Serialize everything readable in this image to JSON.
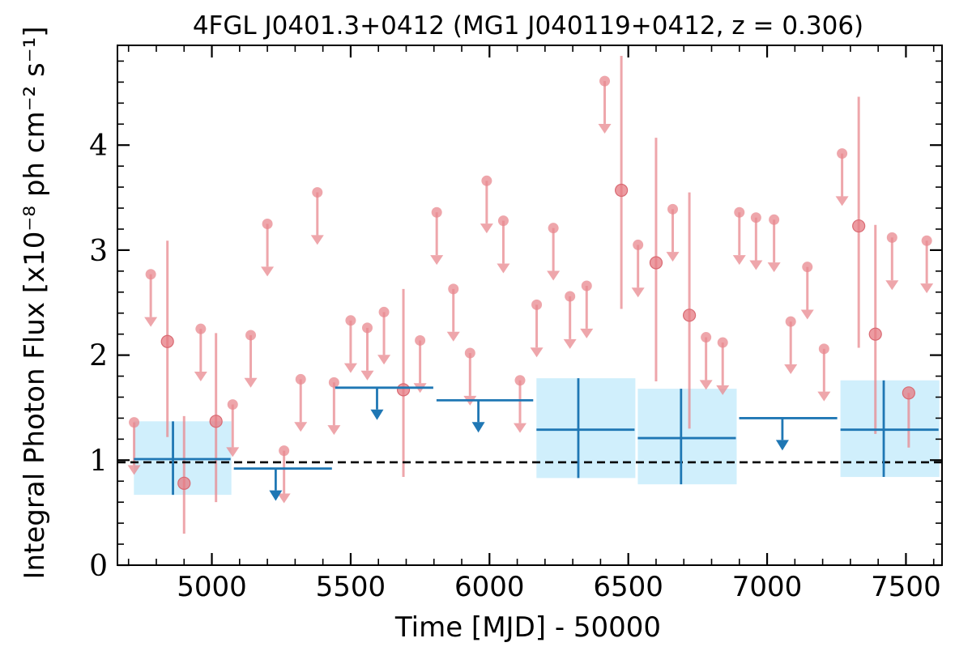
{
  "chart_data": {
    "type": "scatter",
    "title": "4FGL J0401.3+0412 (MG1 J040119+0412, z = 0.306)",
    "xlabel": "Time [MJD] - 50000",
    "ylabel": "Integral Photon Flux [x10⁻⁸ ph cm⁻² s⁻¹]",
    "xlim": [
      4660,
      7630
    ],
    "ylim": [
      0,
      4.95
    ],
    "xticks": [
      5000,
      5500,
      6000,
      6500,
      7000,
      7500
    ],
    "xtick_labels": [
      "5000",
      "5500",
      "6000",
      "6500",
      "7000",
      "7500"
    ],
    "yticks": [
      0,
      1,
      2,
      3,
      4
    ],
    "ytick_labels": [
      "0",
      "1",
      "2",
      "3",
      "4"
    ],
    "grid": false,
    "reference_line": {
      "y": 0.98,
      "style": "dashed",
      "color": "#000000"
    },
    "colors": {
      "short_bins": "#e8888f",
      "long_bins": "#1f77b4",
      "long_band": "#cdeefc"
    },
    "short_bins_upper_limits": [
      {
        "x": 4720,
        "y": 1.36
      },
      {
        "x": 4780,
        "y": 2.77
      },
      {
        "x": 4960,
        "y": 2.25
      },
      {
        "x": 5075,
        "y": 1.53
      },
      {
        "x": 5140,
        "y": 2.19
      },
      {
        "x": 5200,
        "y": 3.25
      },
      {
        "x": 5260,
        "y": 1.09
      },
      {
        "x": 5320,
        "y": 1.77
      },
      {
        "x": 5380,
        "y": 3.55
      },
      {
        "x": 5440,
        "y": 1.74
      },
      {
        "x": 5500,
        "y": 2.33
      },
      {
        "x": 5560,
        "y": 2.26
      },
      {
        "x": 5620,
        "y": 2.41
      },
      {
        "x": 5750,
        "y": 2.14
      },
      {
        "x": 5810,
        "y": 3.36
      },
      {
        "x": 5870,
        "y": 2.63
      },
      {
        "x": 5930,
        "y": 2.02
      },
      {
        "x": 5990,
        "y": 3.66
      },
      {
        "x": 6050,
        "y": 3.28
      },
      {
        "x": 6110,
        "y": 1.76
      },
      {
        "x": 6170,
        "y": 2.48
      },
      {
        "x": 6230,
        "y": 3.21
      },
      {
        "x": 6290,
        "y": 2.56
      },
      {
        "x": 6350,
        "y": 2.66
      },
      {
        "x": 6415,
        "y": 4.61
      },
      {
        "x": 6535,
        "y": 3.05
      },
      {
        "x": 6660,
        "y": 3.39
      },
      {
        "x": 6780,
        "y": 2.17
      },
      {
        "x": 6840,
        "y": 2.12
      },
      {
        "x": 6900,
        "y": 3.36
      },
      {
        "x": 6960,
        "y": 3.31
      },
      {
        "x": 7025,
        "y": 3.29
      },
      {
        "x": 7085,
        "y": 2.32
      },
      {
        "x": 7145,
        "y": 2.84
      },
      {
        "x": 7205,
        "y": 2.06
      },
      {
        "x": 7270,
        "y": 3.92
      },
      {
        "x": 7450,
        "y": 3.12
      },
      {
        "x": 7575,
        "y": 3.09
      }
    ],
    "short_bins_detections": [
      {
        "x": 4840,
        "y": 2.13,
        "ylow": 1.22,
        "yhigh": 3.09
      },
      {
        "x": 4900,
        "y": 0.78,
        "ylow": 0.3,
        "yhigh": 1.42
      },
      {
        "x": 5015,
        "y": 1.37,
        "ylow": 0.6,
        "yhigh": 2.21
      },
      {
        "x": 5690,
        "y": 1.67,
        "ylow": 0.84,
        "yhigh": 2.63
      },
      {
        "x": 6475,
        "y": 3.57,
        "ylow": 2.44,
        "yhigh": 4.85
      },
      {
        "x": 6600,
        "y": 2.88,
        "ylow": 1.75,
        "yhigh": 4.07
      },
      {
        "x": 6720,
        "y": 2.38,
        "ylow": 1.3,
        "yhigh": 3.55
      },
      {
        "x": 7330,
        "y": 3.23,
        "ylow": 2.07,
        "yhigh": 4.46
      },
      {
        "x": 7390,
        "y": 2.2,
        "ylow": 1.25,
        "yhigh": 3.24
      },
      {
        "x": 7510,
        "y": 1.64,
        "ylow": 1.12,
        "yhigh": 1.64
      }
    ],
    "long_bins_detections": [
      {
        "x": 4860,
        "xlow": 4690,
        "xhigh": 5050,
        "y": 1.01,
        "ylow": 0.67,
        "yhigh": 1.37
      },
      {
        "x": 6320,
        "xlow": 6140,
        "xhigh": 6505,
        "y": 1.29,
        "ylow": 0.83,
        "yhigh": 1.78
      },
      {
        "x": 6690,
        "xlow": 6505,
        "xhigh": 6870,
        "y": 1.21,
        "ylow": 0.77,
        "yhigh": 1.68
      },
      {
        "x": 7420,
        "xlow": 7235,
        "xhigh": 7600,
        "y": 1.29,
        "ylow": 0.84,
        "yhigh": 1.76
      }
    ],
    "long_bins_upper_limits": [
      {
        "x": 5230,
        "xlow": 5050,
        "xhigh": 5415,
        "y": 0.92
      },
      {
        "x": 5595,
        "xlow": 5415,
        "xhigh": 5780,
        "y": 1.69
      },
      {
        "x": 5960,
        "xlow": 5780,
        "xhigh": 6140,
        "y": 1.57
      },
      {
        "x": 7055,
        "xlow": 6870,
        "xhigh": 7235,
        "y": 1.4
      }
    ]
  }
}
